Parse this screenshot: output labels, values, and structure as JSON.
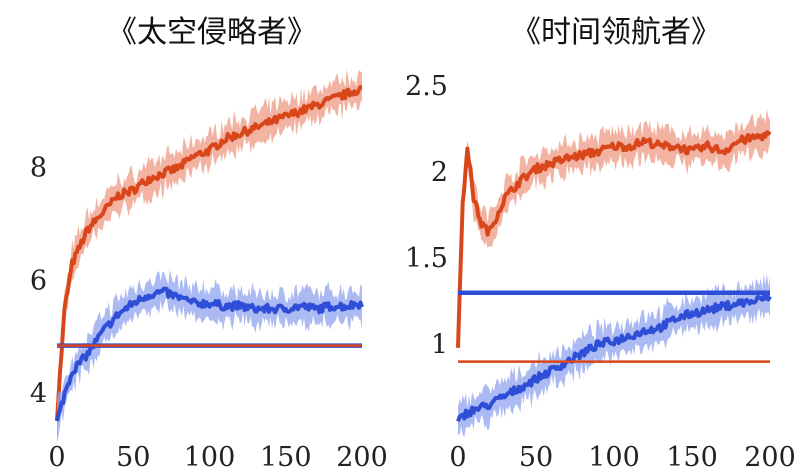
{
  "chart_data": [
    {
      "type": "line",
      "title": "《太空侵略者》",
      "xlabel": "",
      "ylabel": "",
      "xlim": [
        0,
        200
      ],
      "ylim": [
        3.5,
        9.9
      ],
      "xticks": [
        0,
        50,
        100,
        150,
        200
      ],
      "yticks": [
        4,
        6,
        8
      ],
      "grid": false,
      "series": [
        {
          "color": "#d9461a",
          "band_color": "#ef9a84",
          "x": [
            0,
            5,
            10,
            20,
            30,
            40,
            50,
            60,
            70,
            80,
            90,
            100,
            110,
            120,
            130,
            140,
            150,
            160,
            170,
            180,
            190,
            200
          ],
          "y": [
            3.6,
            5.5,
            6.3,
            6.9,
            7.2,
            7.5,
            7.6,
            7.8,
            7.9,
            8.0,
            8.2,
            8.3,
            8.5,
            8.6,
            8.7,
            8.8,
            8.9,
            9.0,
            9.1,
            9.2,
            9.3,
            9.4
          ]
        },
        {
          "color": "#2f4ed8",
          "band_color": "#8fa3ef",
          "x": [
            0,
            5,
            10,
            20,
            30,
            40,
            50,
            60,
            70,
            80,
            90,
            100,
            110,
            120,
            130,
            140,
            150,
            160,
            170,
            180,
            190,
            200
          ],
          "y": [
            3.5,
            4.0,
            4.4,
            4.7,
            5.1,
            5.4,
            5.6,
            5.75,
            5.8,
            5.7,
            5.6,
            5.6,
            5.55,
            5.55,
            5.5,
            5.5,
            5.5,
            5.55,
            5.5,
            5.55,
            5.55,
            5.6
          ]
        }
      ],
      "hlines": [
        {
          "y": 4.85,
          "color": "#2f4ed8"
        },
        {
          "y": 4.85,
          "color": "#d9461a"
        }
      ]
    },
    {
      "type": "line",
      "title": "《时间领航者》",
      "xlabel": "",
      "ylabel": "",
      "xlim": [
        0,
        200
      ],
      "ylim": [
        0.55,
        2.65
      ],
      "xticks": [
        0,
        50,
        100,
        150,
        200
      ],
      "yticks": [
        1.0,
        1.5,
        2.0,
        2.5
      ],
      "grid": false,
      "series": [
        {
          "color": "#d9461a",
          "band_color": "#ef9a84",
          "x": [
            0,
            3,
            6,
            10,
            15,
            20,
            25,
            30,
            40,
            50,
            60,
            70,
            80,
            90,
            100,
            110,
            120,
            130,
            140,
            150,
            160,
            170,
            180,
            190,
            200
          ],
          "y": [
            1.0,
            1.8,
            2.15,
            1.85,
            1.7,
            1.65,
            1.75,
            1.85,
            1.95,
            2.02,
            2.05,
            2.08,
            2.1,
            2.12,
            2.15,
            2.15,
            2.18,
            2.15,
            2.15,
            2.12,
            2.15,
            2.12,
            2.18,
            2.2,
            2.22
          ]
        },
        {
          "color": "#2f4ed8",
          "band_color": "#8fa3ef",
          "x": [
            0,
            5,
            10,
            20,
            30,
            40,
            50,
            60,
            70,
            80,
            90,
            100,
            110,
            120,
            130,
            140,
            150,
            160,
            170,
            180,
            190,
            200
          ],
          "y": [
            0.55,
            0.6,
            0.62,
            0.65,
            0.7,
            0.75,
            0.8,
            0.85,
            0.9,
            0.95,
            1.0,
            1.02,
            1.05,
            1.08,
            1.1,
            1.15,
            1.18,
            1.2,
            1.22,
            1.24,
            1.25,
            1.28
          ]
        }
      ],
      "hlines": [
        {
          "y": 1.3,
          "color": "#2f4ed8"
        },
        {
          "y": 0.9,
          "color": "#d9461a"
        }
      ]
    }
  ]
}
